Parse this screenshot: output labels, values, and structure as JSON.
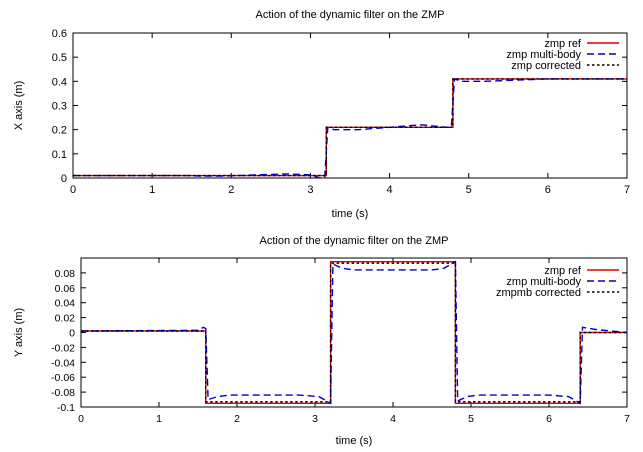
{
  "chart_data": [
    {
      "type": "line",
      "title": "Action of the dynamic filter on the ZMP",
      "xlabel": "time (s)",
      "ylabel": "X axis (m)",
      "xlim": [
        0,
        7
      ],
      "ylim": [
        0,
        0.6
      ],
      "xticks": [
        0,
        1,
        2,
        3,
        4,
        5,
        6,
        7
      ],
      "yticks": [
        0,
        0.1,
        0.2,
        0.3,
        0.4,
        0.5,
        0.6
      ],
      "grid": false,
      "legend_position": "top-right",
      "series": [
        {
          "name": "zmp ref",
          "color": "#e00000",
          "dash": "solid",
          "x": [
            0,
            1.6,
            1.6,
            3.2,
            3.2,
            4.8,
            4.8,
            7.0
          ],
          "y": [
            0.01,
            0.01,
            0.01,
            0.01,
            0.21,
            0.21,
            0.41,
            0.41
          ]
        },
        {
          "name": "zmp multi-body",
          "color": "#0000cc",
          "dash": "dashed",
          "x": [
            0,
            1.5,
            1.6,
            1.9,
            2.3,
            2.7,
            3.0,
            3.12,
            3.18,
            3.22,
            3.3,
            3.6,
            4.0,
            4.4,
            4.72,
            4.78,
            4.82,
            4.9,
            5.2,
            5.6,
            6.0,
            6.5,
            7.0
          ],
          "y": [
            0.01,
            0.01,
            0.008,
            0.008,
            0.013,
            0.017,
            0.013,
            0.0,
            0.0,
            0.21,
            0.2,
            0.2,
            0.21,
            0.22,
            0.21,
            0.21,
            0.41,
            0.4,
            0.4,
            0.405,
            0.41,
            0.41,
            0.41
          ]
        },
        {
          "name": "zmp corrected",
          "color": "#000000",
          "dash": "dotted",
          "x": [
            0,
            1.6,
            1.6,
            3.2,
            3.2,
            4.8,
            4.8,
            7.0
          ],
          "y": [
            0.01,
            0.01,
            0.01,
            0.01,
            0.21,
            0.21,
            0.41,
            0.41
          ]
        }
      ]
    },
    {
      "type": "line",
      "title": "Action of the dynamic filter on the ZMP",
      "xlabel": "time (s)",
      "ylabel": "Y axis (m)",
      "xlim": [
        0,
        7
      ],
      "ylim": [
        -0.1,
        0.1
      ],
      "xticks": [
        0,
        1,
        2,
        3,
        4,
        5,
        6,
        7
      ],
      "yticks": [
        -0.1,
        -0.08,
        -0.06,
        -0.04,
        -0.02,
        0,
        0.02,
        0.04,
        0.06,
        0.08
      ],
      "ytick_labels": [
        "-0.1",
        "-0.08",
        "-0.06",
        "-0.04",
        "-0.02",
        "0",
        "0.02",
        "0.04",
        "0.06",
        "0.08"
      ],
      "grid": false,
      "legend_position": "top-right",
      "series": [
        {
          "name": "zmp ref",
          "color": "#e00000",
          "dash": "solid",
          "x": [
            0,
            1.6,
            1.6,
            3.2,
            3.2,
            4.8,
            4.8,
            6.4,
            6.4,
            7.0
          ],
          "y": [
            0.002,
            0.002,
            -0.095,
            -0.095,
            0.095,
            0.095,
            -0.095,
            -0.095,
            0.0,
            0.0
          ]
        },
        {
          "name": "zmp multi-body",
          "color": "#0000cc",
          "dash": "dashed",
          "x": [
            0,
            1.5,
            1.57,
            1.6,
            1.63,
            1.75,
            1.9,
            2.4,
            2.8,
            3.05,
            3.15,
            3.2,
            3.23,
            3.35,
            3.5,
            4.0,
            4.5,
            4.65,
            4.75,
            4.8,
            4.83,
            4.95,
            5.1,
            5.6,
            6.0,
            6.25,
            6.35,
            6.4,
            6.43,
            6.6,
            7.0
          ],
          "y": [
            0.002,
            0.003,
            0.007,
            0.005,
            -0.09,
            -0.086,
            -0.084,
            -0.084,
            -0.084,
            -0.086,
            -0.092,
            -0.095,
            0.092,
            0.086,
            0.084,
            0.084,
            0.084,
            0.086,
            0.092,
            0.095,
            -0.092,
            -0.086,
            -0.084,
            -0.084,
            -0.084,
            -0.086,
            -0.092,
            -0.095,
            0.007,
            0.004,
            0.0
          ]
        },
        {
          "name": "zmpmb corrected",
          "color": "#000000",
          "dash": "dotted",
          "x": [
            0,
            1.6,
            1.6,
            3.2,
            3.2,
            4.8,
            4.8,
            6.4,
            6.4,
            7.0
          ],
          "y": [
            0.002,
            0.002,
            -0.093,
            -0.093,
            0.093,
            0.093,
            -0.093,
            -0.093,
            0.0,
            0.0
          ]
        }
      ]
    }
  ]
}
